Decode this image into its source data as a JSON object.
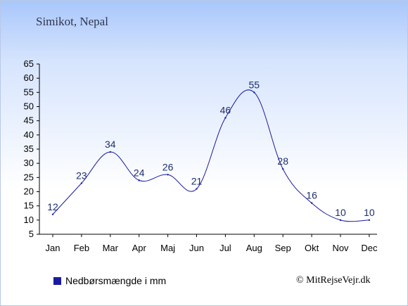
{
  "header": {
    "location": "Simikot, Nepal"
  },
  "legend": {
    "label": "Nedbørsmængde i mm",
    "color": "#1a1aa0"
  },
  "footer": {
    "copyright": "© MitRejseVejr.dk"
  },
  "chart_data": {
    "type": "line",
    "title": "Simikot, Nepal",
    "xlabel": "",
    "ylabel": "",
    "categories": [
      "Jan",
      "Feb",
      "Mar",
      "Apr",
      "Maj",
      "Jun",
      "Jul",
      "Aug",
      "Sep",
      "Okt",
      "Nov",
      "Dec"
    ],
    "series": [
      {
        "name": "Nedbørsmængde i mm",
        "values": [
          12,
          23,
          34,
          24,
          26,
          21,
          46,
          55,
          28,
          16,
          10,
          10
        ],
        "color": "#1a1aa0"
      }
    ],
    "ylim": [
      5,
      65
    ],
    "yticks": [
      5,
      10,
      15,
      20,
      25,
      30,
      35,
      40,
      45,
      50,
      55,
      60,
      65
    ],
    "grid": false,
    "legend_position": "bottom-left"
  }
}
